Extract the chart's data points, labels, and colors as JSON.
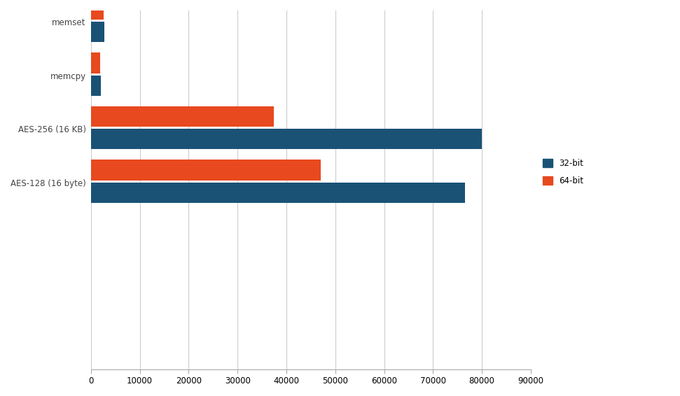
{
  "categories": [
    "AES-128 (16 byte)",
    "AES-256 (16 KB)",
    "memcpy",
    "memset"
  ],
  "values_32bit": [
    76500,
    80000,
    2000,
    2800
  ],
  "values_64bit": [
    47000,
    37500,
    1900,
    2600
  ],
  "color_32bit": "#1a5276",
  "color_64bit": "#e8491e",
  "xlim": [
    0,
    90000
  ],
  "xticks": [
    0,
    10000,
    20000,
    30000,
    40000,
    50000,
    60000,
    70000,
    80000,
    90000
  ],
  "legend_32bit": "32-bit",
  "legend_64bit": "64-bit",
  "bar_height": 0.38,
  "background_color": "#ffffff",
  "grid_color": "#cccccc",
  "label_fontsize": 8.5,
  "tick_fontsize": 8.5
}
